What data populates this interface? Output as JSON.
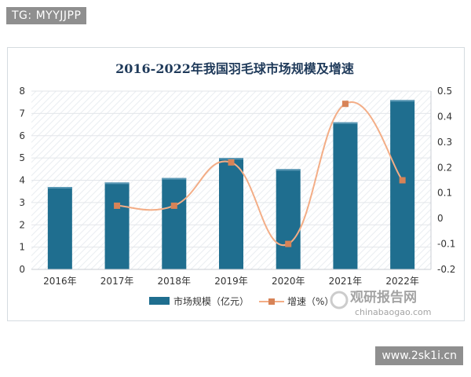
{
  "overlay": {
    "top_tag": "TG: MYYJJPP",
    "bottom_tag": "www.2sk1i.cn"
  },
  "watermark": {
    "name": "观研报告网",
    "url": "chinabaogao.com"
  },
  "colors": {
    "bar": "#1f6e8f",
    "line": "#f3ad86",
    "marker": "#d78357",
    "title": "#1f3a5a",
    "grid": "#e3e6ea"
  },
  "chart_data": {
    "type": "bar",
    "title": "2016-2022年我国羽毛球市场规模及增速",
    "categories": [
      "2016年",
      "2017年",
      "2018年",
      "2019年",
      "2020年",
      "2021年",
      "2022年"
    ],
    "series": [
      {
        "name": "市场规模（亿元）",
        "type": "bar",
        "axis": "left",
        "values": [
          3.7,
          3.9,
          4.1,
          5.0,
          4.5,
          6.6,
          7.6
        ]
      },
      {
        "name": "增速（%）",
        "type": "line",
        "axis": "right",
        "values": [
          null,
          0.05,
          0.05,
          0.22,
          -0.1,
          0.45,
          0.15
        ]
      }
    ],
    "y_left": {
      "min": 0,
      "max": 8,
      "ticks": [
        "0",
        "1",
        "2",
        "3",
        "4",
        "5",
        "6",
        "7",
        "8"
      ]
    },
    "y_right": {
      "min": -0.2,
      "max": 0.5,
      "ticks": [
        "-0.2",
        "-0.1",
        "0",
        "0.1",
        "0.2",
        "0.3",
        "0.4",
        "0.5"
      ]
    },
    "legend_position": "bottom",
    "grid": true
  }
}
